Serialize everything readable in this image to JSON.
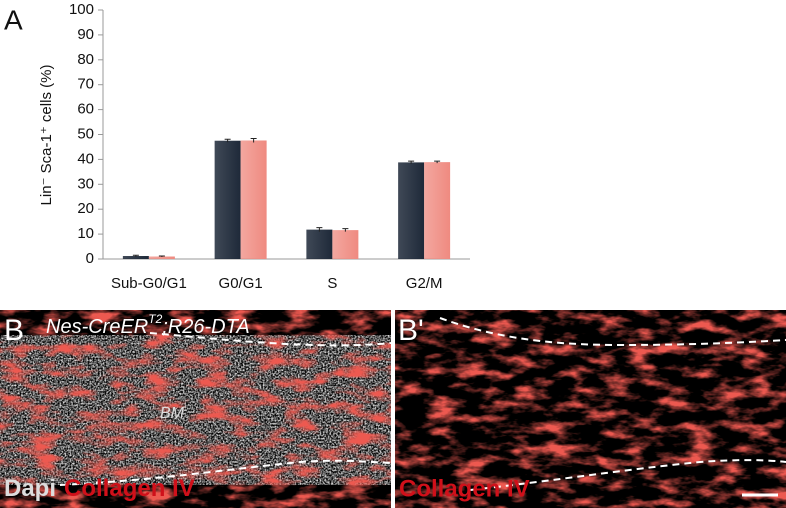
{
  "chart_data": {
    "type": "bar",
    "panel_label": "A",
    "y_label": "Lin⁻ Sca-1⁺ cells (%)",
    "categories": [
      "Sub-G0/G1",
      "G0/G1",
      "S",
      "G2/M"
    ],
    "series": [
      {
        "color": "#1e2939",
        "values": [
          1.2,
          47.5,
          11.8,
          38.8
        ],
        "errors": [
          0.3,
          0.6,
          0.8,
          0.5
        ]
      },
      {
        "color": "#ef8a80",
        "values": [
          1.0,
          47.6,
          11.6,
          38.9
        ],
        "errors": [
          0.2,
          0.8,
          0.6,
          0.4
        ]
      }
    ],
    "ylim": [
      0,
      100
    ],
    "yticks": [
      0,
      10,
      20,
      30,
      40,
      50,
      60,
      70,
      80,
      90,
      100
    ]
  },
  "images": [
    {
      "panel_label": "B",
      "genotype": [
        "Nes-CreER",
        "T2",
        ";R26-DTA"
      ],
      "region_label": "BM",
      "stain_labels": [
        "Dapi",
        "Collagen IV"
      ]
    },
    {
      "panel_label": "B'",
      "stain_labels": [
        "Collagen IV"
      ]
    }
  ]
}
